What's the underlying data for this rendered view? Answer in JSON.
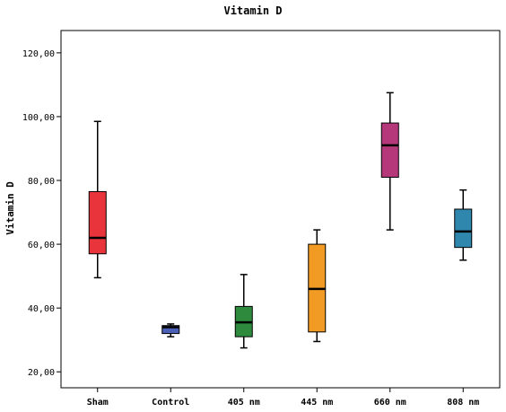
{
  "chart_data": {
    "type": "boxplot",
    "title": "Vitamin D",
    "xlabel": "",
    "ylabel": "Vitamin D",
    "ylim": [
      15,
      127
    ],
    "yticks": [
      20,
      40,
      60,
      80,
      100,
      120
    ],
    "ytick_labels": [
      "20,00",
      "40,00",
      "60,00",
      "80,00",
      "100,00",
      "120,00"
    ],
    "grid": false,
    "categories": [
      "Sham",
      "Control",
      "405 nm",
      "445 nm",
      "660 nm",
      "808 nm"
    ],
    "boxes": [
      {
        "category": "Sham",
        "min": 49.5,
        "q1": 57.0,
        "median": 62.0,
        "q3": 76.5,
        "max": 98.5,
        "color": "#e8343a"
      },
      {
        "category": "Control",
        "min": 31.0,
        "q1": 32.0,
        "median": 34.0,
        "q3": 34.5,
        "max": 35.0,
        "color": "#4a5fb5"
      },
      {
        "category": "405 nm",
        "min": 27.5,
        "q1": 31.0,
        "median": 35.5,
        "q3": 40.5,
        "max": 50.5,
        "color": "#2e8b3e"
      },
      {
        "category": "445 nm",
        "min": 29.5,
        "q1": 32.5,
        "median": 46.0,
        "q3": 60.0,
        "max": 64.5,
        "color": "#f29b24"
      },
      {
        "category": "660 nm",
        "min": 64.5,
        "q1": 81.0,
        "median": 91.0,
        "q3": 98.0,
        "max": 107.5,
        "color": "#b5397a"
      },
      {
        "category": "808 nm",
        "min": 55.0,
        "q1": 59.0,
        "median": 64.0,
        "q3": 71.0,
        "max": 77.0,
        "color": "#2f87ad"
      }
    ]
  }
}
